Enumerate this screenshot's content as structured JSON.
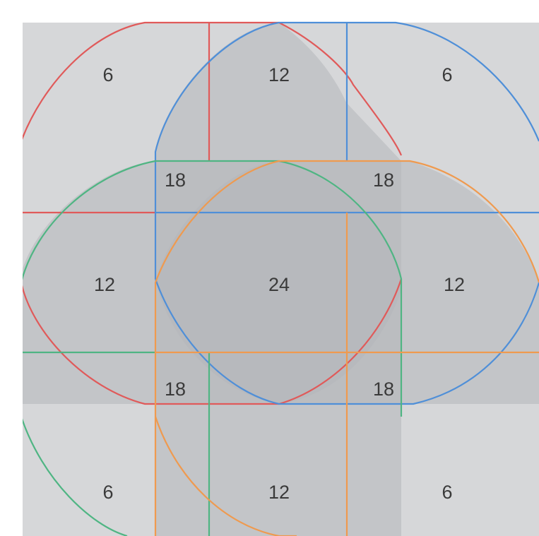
{
  "diagram": {
    "colors": {
      "background": "#ffffff",
      "region_fill": "#b4b6ba",
      "red_shape": "#e05a5a",
      "blue_shape": "#4f8fd8",
      "green_shape": "#4fb583",
      "orange_shape": "#ef9a4f"
    },
    "labels": {
      "top_left": "6",
      "top_center": "12",
      "top_right": "6",
      "upper_left_inner": "18",
      "upper_right_inner": "18",
      "middle_left": "12",
      "center": "24",
      "middle_right": "12",
      "lower_left_inner": "18",
      "lower_right_inner": "18",
      "bottom_left": "6",
      "bottom_center": "12",
      "bottom_right": "6"
    }
  }
}
